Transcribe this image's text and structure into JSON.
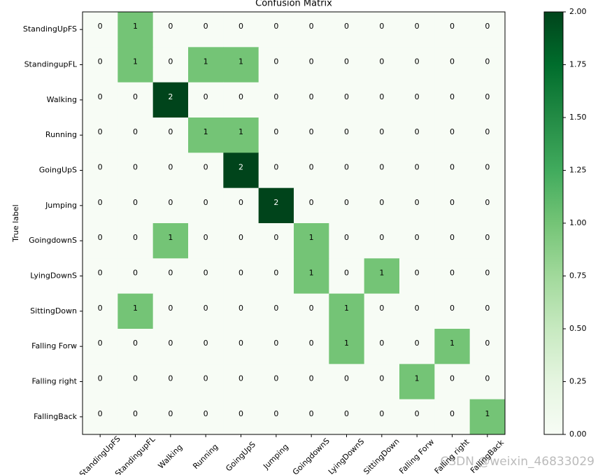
{
  "chart_data": {
    "type": "heatmap",
    "title": "Confusion Matrix",
    "y_label": "True label",
    "x_categories": [
      "StandingUpFS",
      "StandingupFL",
      "Walking",
      "Running",
      "GoingUpS",
      "Jumping",
      "GoingdownS",
      "LyingDownS",
      "SittingDown",
      "Falling Forw",
      "Falling right",
      "FallingBack"
    ],
    "y_categories": [
      "StandingUpFS",
      "StandingupFL",
      "Walking",
      "Running",
      "GoingUpS",
      "Jumping",
      "GoingdownS",
      "LyingDownS",
      "SittingDown",
      "Falling Forw",
      "Falling right",
      "FallingBack"
    ],
    "values": [
      [
        0,
        1,
        0,
        0,
        0,
        0,
        0,
        0,
        0,
        0,
        0,
        0
      ],
      [
        0,
        1,
        0,
        1,
        1,
        0,
        0,
        0,
        0,
        0,
        0,
        0
      ],
      [
        0,
        0,
        2,
        0,
        0,
        0,
        0,
        0,
        0,
        0,
        0,
        0
      ],
      [
        0,
        0,
        0,
        1,
        1,
        0,
        0,
        0,
        0,
        0,
        0,
        0
      ],
      [
        0,
        0,
        0,
        0,
        2,
        0,
        0,
        0,
        0,
        0,
        0,
        0
      ],
      [
        0,
        0,
        0,
        0,
        0,
        2,
        0,
        0,
        0,
        0,
        0,
        0
      ],
      [
        0,
        0,
        1,
        0,
        0,
        0,
        1,
        0,
        0,
        0,
        0,
        0
      ],
      [
        0,
        0,
        0,
        0,
        0,
        0,
        1,
        0,
        1,
        0,
        0,
        0
      ],
      [
        0,
        1,
        0,
        0,
        0,
        0,
        0,
        1,
        0,
        0,
        0,
        0
      ],
      [
        0,
        0,
        0,
        0,
        0,
        0,
        0,
        1,
        0,
        0,
        1,
        0
      ],
      [
        0,
        0,
        0,
        0,
        0,
        0,
        0,
        0,
        0,
        1,
        0,
        0
      ],
      [
        0,
        0,
        0,
        0,
        0,
        0,
        0,
        0,
        0,
        0,
        0,
        1
      ]
    ],
    "colormap": [
      "#f7fcf5",
      "#e5f5e0",
      "#c7e9c0",
      "#a1d99b",
      "#74c476",
      "#41ab5d",
      "#238b45",
      "#006d2c",
      "#00441b"
    ],
    "clim": [
      0,
      2
    ],
    "cticks": [
      {
        "value": 0,
        "label": "0.00"
      },
      {
        "value": 0.25,
        "label": "0.25"
      },
      {
        "value": 0.5,
        "label": "0.50"
      },
      {
        "value": 0.75,
        "label": "0.75"
      },
      {
        "value": 1,
        "label": "1.00"
      },
      {
        "value": 1.25,
        "label": "1.25"
      },
      {
        "value": 1.5,
        "label": "1.50"
      },
      {
        "value": 1.75,
        "label": "1.75"
      },
      {
        "value": 2,
        "label": "2.00"
      }
    ],
    "watermark": "CSDN @weixin_46833029"
  }
}
